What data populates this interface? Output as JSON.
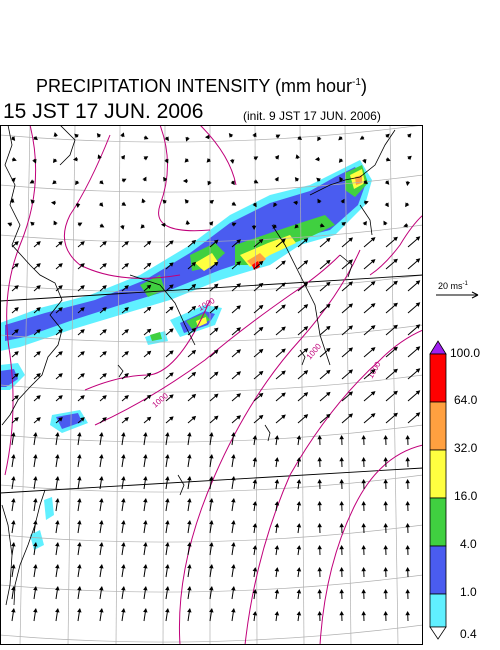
{
  "header": {
    "title": "PRECIPITATION INTENSITY (mm hour",
    "title_unit_exponent": "-1",
    "title_close": ")",
    "datetime": "15 JST 17 JUN. 2006",
    "init": "(init. 9 JST 17 JUN. 2006)"
  },
  "wind_reference": {
    "label": "20 ms",
    "exponent": "-1"
  },
  "isobar_labels": [
    "1000",
    "1000",
    "1000",
    "1000"
  ],
  "legend": {
    "levels": [
      "100.0",
      "64.0",
      "32.0",
      "16.0",
      "4.0",
      "1.0",
      "0.4"
    ],
    "colors": {
      "over": "#a020f0",
      "64-100": "#ff0000",
      "32-64": "#ffa040",
      "16-32": "#ffff40",
      "4-16": "#40d040",
      "1-4": "#4a5cf0",
      "0.4-1": "#60f0ff",
      "under": "#ffffff"
    }
  },
  "map_colors": {
    "isobar": "#c0007a",
    "coast": "#000000",
    "grid": "#b0b0b0"
  }
}
